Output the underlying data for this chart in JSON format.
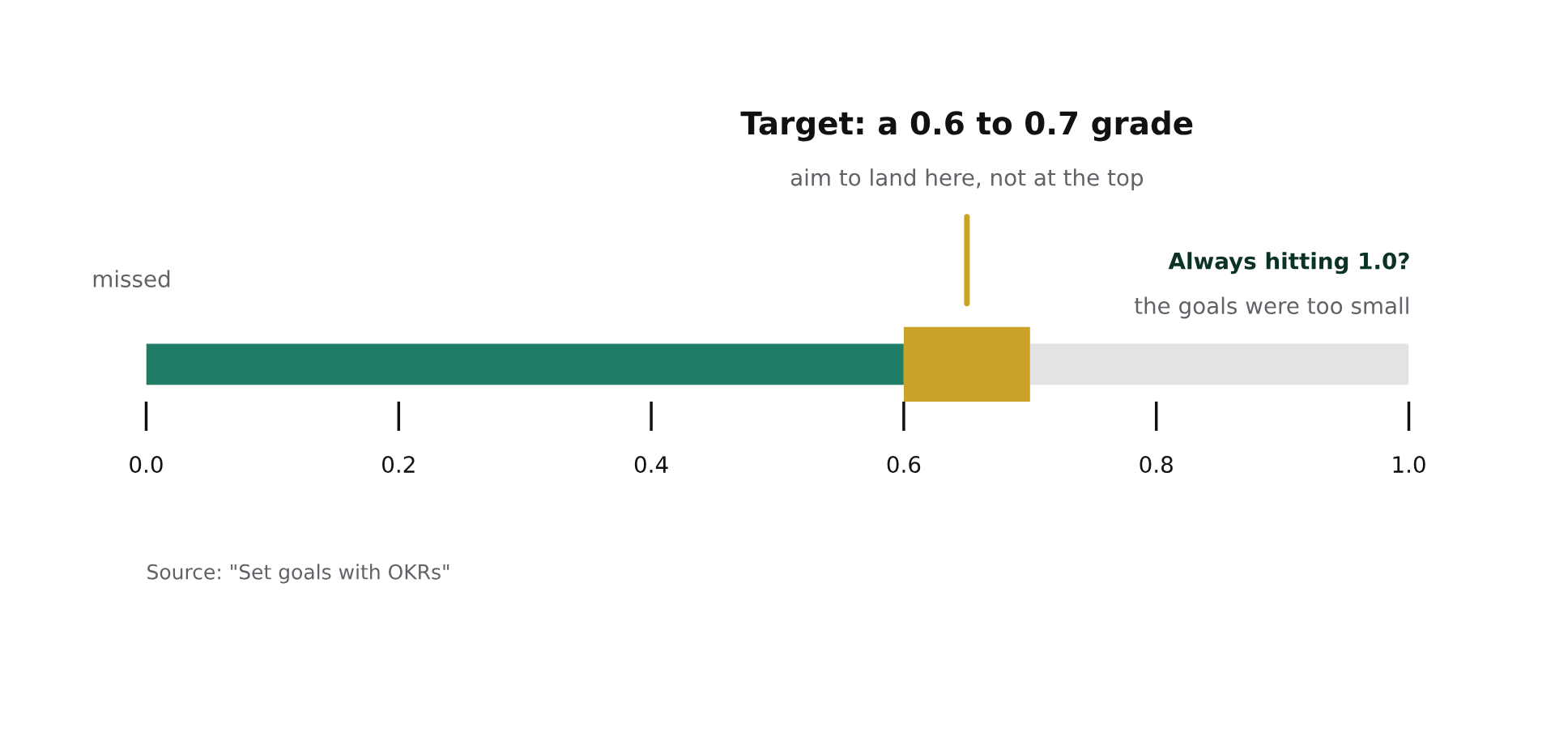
{
  "chart_data": {
    "type": "bar",
    "orientation": "horizontal",
    "stacked": true,
    "title": "Target: a 0.6 to 0.7 grade",
    "categories": [
      null
    ],
    "series": [
      {
        "color": "#217e66",
        "values": [
          0.6
        ]
      },
      {
        "color": "#e3e3e4",
        "values": [
          0.4
        ]
      }
    ],
    "bands": [
      {
        "axis": "x",
        "from": 0.6,
        "to": 0.7,
        "color": "#c9a227"
      }
    ],
    "xlim": [
      0,
      1
    ],
    "xticks": [
      {
        "value": 0,
        "label": "0.0"
      },
      {
        "value": 0.2,
        "label": "0.2"
      },
      {
        "value": 0.4,
        "label": "0.4"
      },
      {
        "value": 0.6,
        "label": "0.6"
      },
      {
        "value": 0.8,
        "label": "0.8"
      },
      {
        "value": 1,
        "label": "1.0"
      }
    ],
    "tick_labels": "x",
    "grid": false,
    "legend": false,
    "annotations": [
      "aim to land here, not at the top",
      "missed",
      "Always hitting 1.0?",
      "the goals were too small",
      "Source: \"Set goals with OKRs\""
    ]
  }
}
